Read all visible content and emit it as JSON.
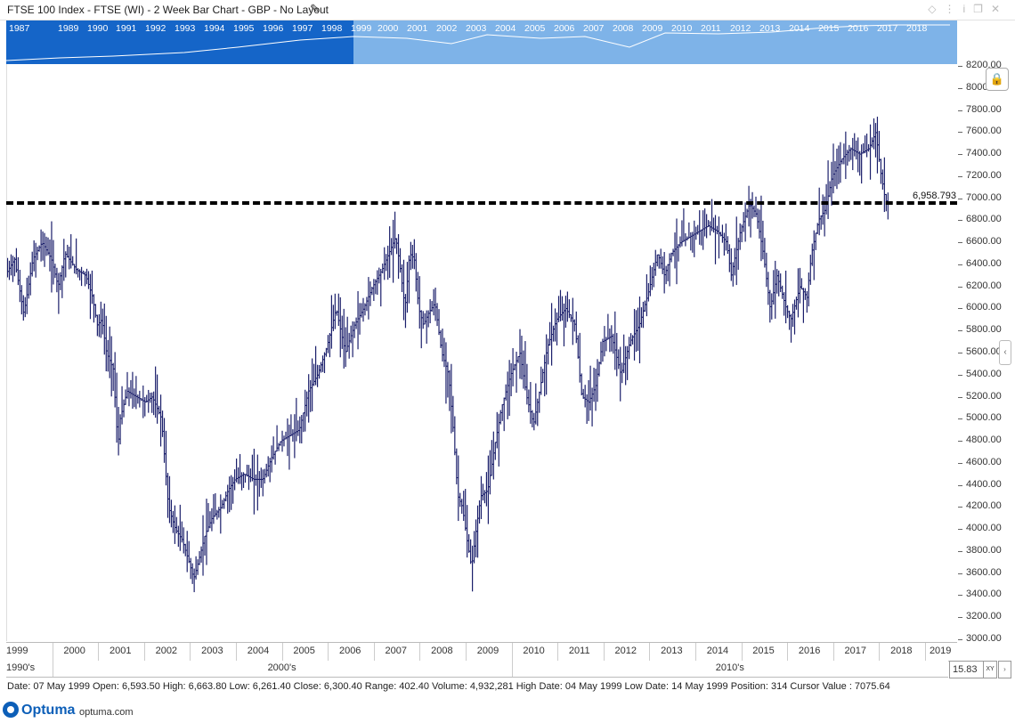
{
  "window": {
    "title": "FTSE 100 Index - FTSE (WI) - 2 Week Bar Chart - GBP - No Layout"
  },
  "overview": {
    "years": [
      "1987",
      "1989",
      "1990",
      "1991",
      "1992",
      "1993",
      "1994",
      "1995",
      "1996",
      "1997",
      "1998",
      "1999",
      "2000",
      "2001",
      "2002",
      "2003",
      "2004",
      "2005",
      "2006",
      "2007",
      "2008",
      "2009",
      "2010",
      "2011",
      "2012",
      "2013",
      "2014",
      "2015",
      "2016",
      "2017",
      "2018"
    ],
    "selected_color": "#1565c8",
    "unselected_color": "#7eb3e8"
  },
  "chart_data": {
    "type": "bar",
    "subtype": "ohlc",
    "title": "FTSE 100 Index - FTSE (WI) - 2 Week Bar Chart - GBP - No Layout",
    "x_start": 1999.0,
    "x_end": 2019.7,
    "ylim": [
      3000,
      8200
    ],
    "yticks": [
      "3000.00",
      "3200.00",
      "3400.00",
      "3600.00",
      "3800.00",
      "4000.00",
      "4200.00",
      "4400.00",
      "4600.00",
      "4800.00",
      "5000.00",
      "5200.00",
      "5400.00",
      "5600.00",
      "5800.00",
      "6000.00",
      "6200.00",
      "6400.00",
      "6600.00",
      "6800.00",
      "7000.00",
      "7200.00",
      "7400.00",
      "7600.00",
      "7800.00",
      "8000.00",
      "8200.00"
    ],
    "x_year_labels": [
      "1999",
      "2000",
      "2001",
      "2002",
      "2003",
      "2004",
      "2005",
      "2006",
      "2007",
      "2008",
      "2009",
      "2010",
      "2011",
      "2012",
      "2013",
      "2014",
      "2015",
      "2016",
      "2017",
      "2018",
      "2019"
    ],
    "decade_labels": [
      "1990's",
      "2000's",
      "2010's"
    ],
    "reference_line": {
      "value": 6958.793,
      "label": "6,958.793"
    },
    "bar_color": "#1b1f6b",
    "path_points": [
      {
        "x": 1999.0,
        "y": 6300
      },
      {
        "x": 1999.2,
        "y": 6450
      },
      {
        "x": 1999.4,
        "y": 5950
      },
      {
        "x": 1999.6,
        "y": 6450
      },
      {
        "x": 1999.8,
        "y": 6600
      },
      {
        "x": 2000.0,
        "y": 6450
      },
      {
        "x": 2000.15,
        "y": 6200
      },
      {
        "x": 2000.3,
        "y": 6500
      },
      {
        "x": 2000.55,
        "y": 6350
      },
      {
        "x": 2000.75,
        "y": 6300
      },
      {
        "x": 2000.9,
        "y": 6100
      },
      {
        "x": 2001.0,
        "y": 5850
      },
      {
        "x": 2001.1,
        "y": 5900
      },
      {
        "x": 2001.2,
        "y": 5600
      },
      {
        "x": 2001.35,
        "y": 5450
      },
      {
        "x": 2001.45,
        "y": 4750
      },
      {
        "x": 2001.5,
        "y": 5000
      },
      {
        "x": 2001.65,
        "y": 5250
      },
      {
        "x": 2001.85,
        "y": 5200
      },
      {
        "x": 2002.05,
        "y": 5150
      },
      {
        "x": 2002.2,
        "y": 5200
      },
      {
        "x": 2002.4,
        "y": 5000
      },
      {
        "x": 2002.55,
        "y": 4200
      },
      {
        "x": 2002.7,
        "y": 4000
      },
      {
        "x": 2002.85,
        "y": 3900
      },
      {
        "x": 2003.0,
        "y": 3700
      },
      {
        "x": 2003.1,
        "y": 3550
      },
      {
        "x": 2003.2,
        "y": 3700
      },
      {
        "x": 2003.35,
        "y": 3950
      },
      {
        "x": 2003.5,
        "y": 4100
      },
      {
        "x": 2003.7,
        "y": 4200
      },
      {
        "x": 2003.85,
        "y": 4350
      },
      {
        "x": 2004.0,
        "y": 4450
      },
      {
        "x": 2004.2,
        "y": 4500
      },
      {
        "x": 2004.4,
        "y": 4450
      },
      {
        "x": 2004.6,
        "y": 4450
      },
      {
        "x": 2004.8,
        "y": 4650
      },
      {
        "x": 2005.0,
        "y": 4800
      },
      {
        "x": 2005.2,
        "y": 4850
      },
      {
        "x": 2005.4,
        "y": 4900
      },
      {
        "x": 2005.6,
        "y": 5250
      },
      {
        "x": 2005.8,
        "y": 5400
      },
      {
        "x": 2006.0,
        "y": 5650
      },
      {
        "x": 2006.2,
        "y": 6000
      },
      {
        "x": 2006.4,
        "y": 5600
      },
      {
        "x": 2006.6,
        "y": 5850
      },
      {
        "x": 2006.8,
        "y": 6000
      },
      {
        "x": 2007.0,
        "y": 6200
      },
      {
        "x": 2007.2,
        "y": 6350
      },
      {
        "x": 2007.4,
        "y": 6550
      },
      {
        "x": 2007.5,
        "y": 6650
      },
      {
        "x": 2007.6,
        "y": 6350
      },
      {
        "x": 2007.7,
        "y": 6000
      },
      {
        "x": 2007.8,
        "y": 6500
      },
      {
        "x": 2007.9,
        "y": 6450
      },
      {
        "x": 2008.0,
        "y": 6000
      },
      {
        "x": 2008.1,
        "y": 5850
      },
      {
        "x": 2008.2,
        "y": 5950
      },
      {
        "x": 2008.35,
        "y": 6050
      },
      {
        "x": 2008.5,
        "y": 5600
      },
      {
        "x": 2008.65,
        "y": 5400
      },
      {
        "x": 2008.75,
        "y": 4900
      },
      {
        "x": 2008.85,
        "y": 4300
      },
      {
        "x": 2008.95,
        "y": 4200
      },
      {
        "x": 2009.05,
        "y": 3900
      },
      {
        "x": 2009.15,
        "y": 3650
      },
      {
        "x": 2009.25,
        "y": 4000
      },
      {
        "x": 2009.35,
        "y": 4300
      },
      {
        "x": 2009.5,
        "y": 4350
      },
      {
        "x": 2009.65,
        "y": 4750
      },
      {
        "x": 2009.8,
        "y": 5100
      },
      {
        "x": 2010.0,
        "y": 5400
      },
      {
        "x": 2010.2,
        "y": 5600
      },
      {
        "x": 2010.35,
        "y": 5200
      },
      {
        "x": 2010.5,
        "y": 4950
      },
      {
        "x": 2010.65,
        "y": 5300
      },
      {
        "x": 2010.8,
        "y": 5650
      },
      {
        "x": 2011.0,
        "y": 5900
      },
      {
        "x": 2011.2,
        "y": 6000
      },
      {
        "x": 2011.4,
        "y": 5850
      },
      {
        "x": 2011.55,
        "y": 5200
      },
      {
        "x": 2011.7,
        "y": 5150
      },
      {
        "x": 2011.85,
        "y": 5300
      },
      {
        "x": 2012.0,
        "y": 5700
      },
      {
        "x": 2012.2,
        "y": 5750
      },
      {
        "x": 2012.4,
        "y": 5400
      },
      {
        "x": 2012.6,
        "y": 5700
      },
      {
        "x": 2012.8,
        "y": 5850
      },
      {
        "x": 2013.0,
        "y": 6150
      },
      {
        "x": 2013.2,
        "y": 6500
      },
      {
        "x": 2013.35,
        "y": 6300
      },
      {
        "x": 2013.5,
        "y": 6500
      },
      {
        "x": 2013.7,
        "y": 6600
      },
      {
        "x": 2013.9,
        "y": 6650
      },
      {
        "x": 2014.1,
        "y": 6700
      },
      {
        "x": 2014.3,
        "y": 6750
      },
      {
        "x": 2014.5,
        "y": 6700
      },
      {
        "x": 2014.7,
        "y": 6600
      },
      {
        "x": 2014.8,
        "y": 6300
      },
      {
        "x": 2015.0,
        "y": 6700
      },
      {
        "x": 2015.2,
        "y": 6950
      },
      {
        "x": 2015.35,
        "y": 6850
      },
      {
        "x": 2015.5,
        "y": 6500
      },
      {
        "x": 2015.65,
        "y": 6000
      },
      {
        "x": 2015.8,
        "y": 6300
      },
      {
        "x": 2016.0,
        "y": 6000
      },
      {
        "x": 2016.1,
        "y": 5900
      },
      {
        "x": 2016.3,
        "y": 6200
      },
      {
        "x": 2016.45,
        "y": 6100
      },
      {
        "x": 2016.55,
        "y": 6500
      },
      {
        "x": 2016.7,
        "y": 6800
      },
      {
        "x": 2016.85,
        "y": 6900
      },
      {
        "x": 2017.0,
        "y": 7200
      },
      {
        "x": 2017.2,
        "y": 7350
      },
      {
        "x": 2017.4,
        "y": 7450
      },
      {
        "x": 2017.6,
        "y": 7400
      },
      {
        "x": 2017.8,
        "y": 7450
      },
      {
        "x": 2017.95,
        "y": 7600
      },
      {
        "x": 2018.05,
        "y": 7250
      },
      {
        "x": 2018.15,
        "y": 7000
      },
      {
        "x": 2018.2,
        "y": 6950
      }
    ]
  },
  "right_panel": {
    "zoom_value": "15.83",
    "xy_label": "XY"
  },
  "status_bar": {
    "text": "Date: 07 May 1999 Open: 6,593.50 High: 6,663.80 Low: 6,261.40 Close: 6,300.40 Range: 402.40 Volume: 4,932,281 High Date: 04 May 1999 Low Date: 14 May 1999 Position: 314 Cursor Value : 7075.64"
  },
  "footer": {
    "brand": "Optuma",
    "url": "optuma.com",
    "brand_color": "#0d5fb8"
  }
}
